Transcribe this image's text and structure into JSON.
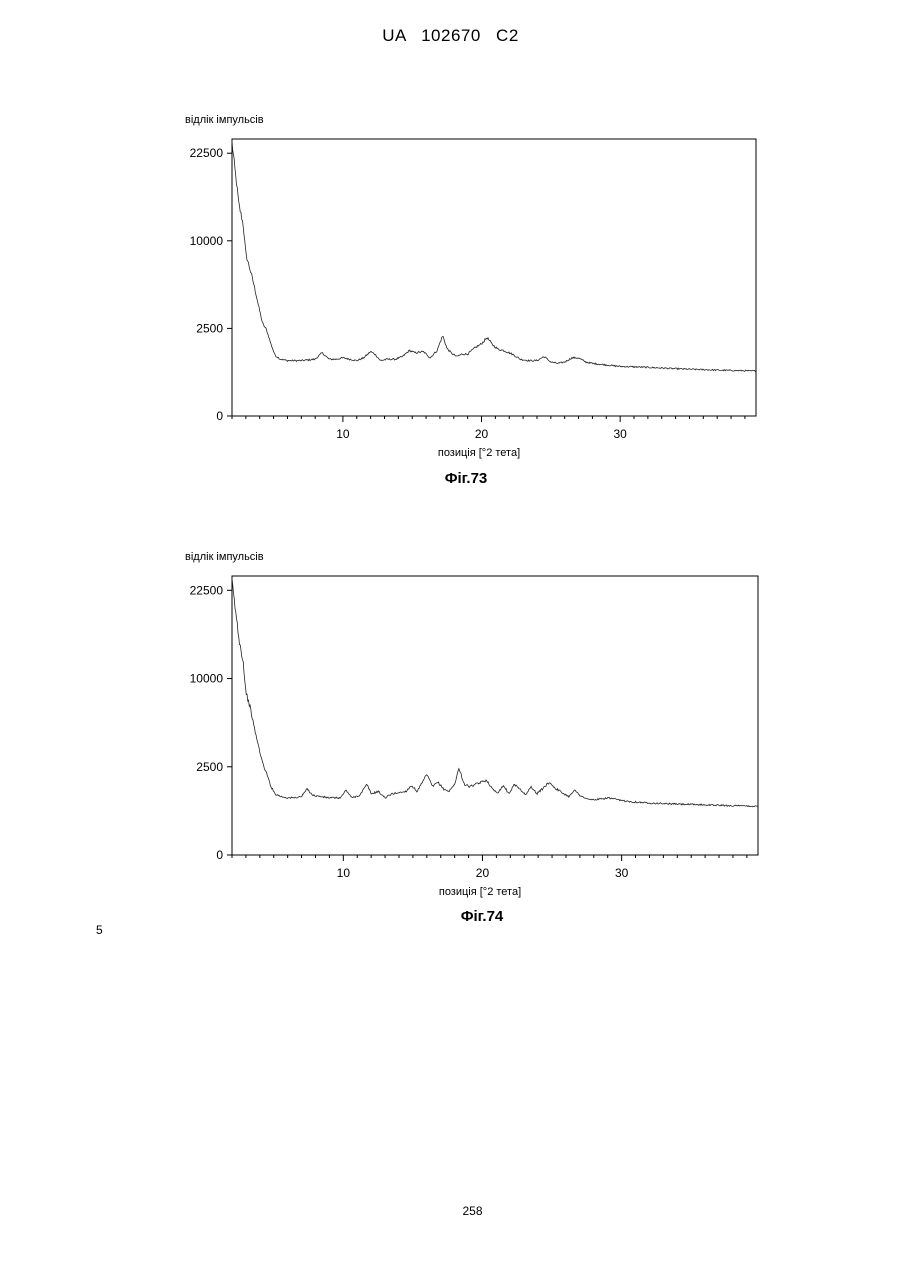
{
  "header": {
    "text": "UA 102670 C2"
  },
  "line_number": "5",
  "page_number": "258",
  "chart_data": [
    {
      "type": "line",
      "caption": "Фіг.73",
      "ylabel": "відлік імпульсів",
      "xlabel": "позиція [°2 тета]",
      "xlim": [
        2,
        39.8
      ],
      "ylim": [
        0,
        25000
      ],
      "y_scale": "square-root",
      "x_ticks": [
        "10",
        "20",
        "30"
      ],
      "x_tick_values": [
        10,
        20,
        30
      ],
      "y_ticks": [
        "0",
        "2500",
        "10000",
        "22500"
      ],
      "y_tick_values": [
        0,
        2500,
        10000,
        22500
      ],
      "series": [
        {
          "x": [
            2.0,
            2.2,
            2.5,
            2.8,
            3.0,
            3.3,
            3.6,
            3.9,
            4.2,
            4.5,
            4.8,
            5.1,
            5.5,
            6.0,
            7.0,
            8.0,
            8.5,
            9.0,
            9.5,
            10.0,
            10.5,
            11.0,
            11.5,
            12.0,
            12.3,
            12.7,
            13.2,
            13.8,
            14.3,
            14.8,
            15.2,
            15.8,
            16.3,
            16.8,
            17.2,
            17.5,
            17.8,
            18.2,
            18.6,
            19.0,
            19.5,
            20.0,
            20.4,
            20.8,
            21.2,
            21.6,
            22.2,
            22.8,
            23.4,
            24.0,
            24.5,
            25.0,
            25.5,
            26.0,
            26.5,
            27.0,
            27.5,
            28.0,
            29.0,
            30.0,
            31.5,
            33.0,
            34.5,
            36.0,
            37.5,
            39.8
          ],
          "y": [
            24500,
            20000,
            14500,
            12000,
            8500,
            7000,
            5500,
            4000,
            2800,
            2400,
            1700,
            1200,
            1050,
            1000,
            1000,
            1050,
            1300,
            1050,
            1050,
            1100,
            1050,
            1000,
            1100,
            1350,
            1250,
            1000,
            1050,
            1050,
            1150,
            1400,
            1300,
            1350,
            1100,
            1400,
            2100,
            1500,
            1300,
            1150,
            1250,
            1250,
            1500,
            1700,
            2000,
            1650,
            1450,
            1400,
            1250,
            1050,
            1000,
            1000,
            1150,
            950,
            900,
            950,
            1100,
            1100,
            950,
            900,
            850,
            800,
            780,
            750,
            720,
            700,
            680,
            660
          ]
        }
      ]
    },
    {
      "type": "line",
      "caption": "Фіг.74",
      "ylabel": "відлік імпульсів",
      "xlabel": "позиція [°2 тета]",
      "xlim": [
        2,
        39.8
      ],
      "ylim": [
        0,
        25000
      ],
      "y_scale": "square-root",
      "x_ticks": [
        "10",
        "20",
        "30"
      ],
      "x_tick_values": [
        10,
        20,
        30
      ],
      "y_ticks": [
        "0",
        "2500",
        "10000",
        "22500"
      ],
      "y_tick_values": [
        0,
        2500,
        10000,
        22500
      ],
      "series": [
        {
          "x": [
            2.0,
            2.2,
            2.5,
            2.8,
            3.0,
            3.3,
            3.6,
            3.9,
            4.2,
            4.5,
            4.8,
            5.1,
            5.5,
            6.0,
            6.5,
            7.0,
            7.4,
            7.8,
            8.3,
            9.0,
            9.8,
            10.2,
            10.6,
            11.2,
            11.7,
            12.0,
            12.5,
            13.0,
            13.5,
            14.0,
            14.5,
            14.9,
            15.3,
            15.7,
            16.0,
            16.4,
            16.8,
            17.2,
            17.6,
            18.0,
            18.3,
            18.7,
            19.1,
            19.5,
            19.9,
            20.3,
            20.7,
            21.1,
            21.5,
            21.9,
            22.3,
            22.7,
            23.1,
            23.5,
            23.9,
            24.3,
            24.8,
            25.2,
            25.7,
            26.2,
            26.6,
            27.0,
            27.5,
            28.0,
            28.5,
            29.0,
            30.0,
            31.0,
            32.0,
            33.5,
            35.0,
            36.5,
            38.0,
            39.8
          ],
          "y": [
            24000,
            20000,
            15000,
            12000,
            8500,
            7000,
            5200,
            3800,
            2700,
            2100,
            1500,
            1200,
            1100,
            1050,
            1050,
            1100,
            1400,
            1150,
            1100,
            1050,
            1050,
            1350,
            1050,
            1150,
            1600,
            1200,
            1300,
            1050,
            1200,
            1250,
            1300,
            1550,
            1300,
            1700,
            2100,
            1500,
            1700,
            1400,
            1300,
            1600,
            2400,
            1600,
            1500,
            1600,
            1700,
            1800,
            1400,
            1250,
            1550,
            1200,
            1600,
            1400,
            1150,
            1500,
            1200,
            1400,
            1700,
            1450,
            1250,
            1100,
            1350,
            1150,
            1000,
            980,
            1000,
            1050,
            950,
            900,
            870,
            840,
            820,
            800,
            780,
            760
          ]
        }
      ]
    }
  ]
}
